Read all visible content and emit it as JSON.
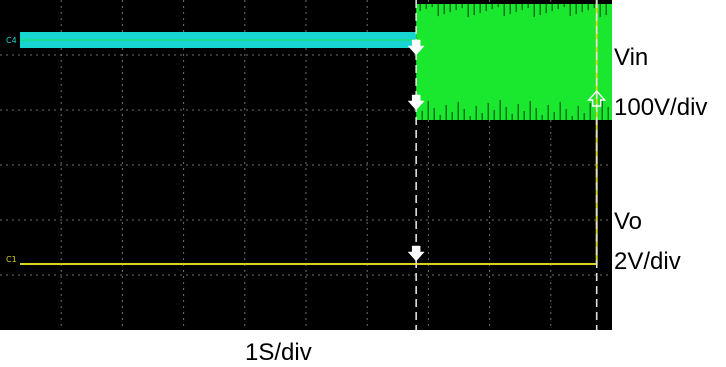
{
  "chart_data": {
    "type": "line",
    "x_unit": "s",
    "xlim": [
      0,
      10
    ],
    "grid": true,
    "background_color": "#000000",
    "grid_color": "#6e6e6e",
    "channel_markers": [
      "C4",
      "C1"
    ],
    "trigger_times": [
      6.8,
      9.75
    ],
    "series": [
      {
        "label_lines": [
          "Vin",
          "100V/div"
        ],
        "color": "#19e82f",
        "pre_trigger_color": "#17d6d0",
        "points": [
          [
            0,
            0.0
          ],
          [
            6.8,
            0.0
          ],
          [
            6.8,
            1.0
          ],
          [
            10,
            1.0
          ]
        ],
        "band_before": [
          0.76,
          0.84
        ],
        "band_after": [
          0.4,
          0.98
        ]
      },
      {
        "label_lines": [
          "Vo",
          "2V/div"
        ],
        "color": "#d8d21a",
        "points": [
          [
            0,
            0.0
          ],
          [
            9.75,
            0.0
          ],
          [
            9.75,
            1.0
          ]
        ]
      }
    ],
    "x_scale_label": "1S/div"
  }
}
